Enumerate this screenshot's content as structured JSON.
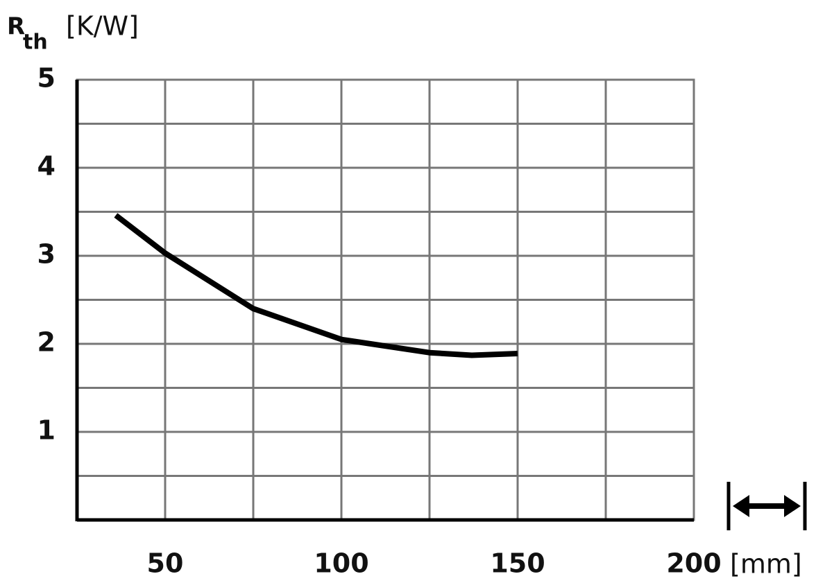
{
  "chart_data": {
    "type": "line",
    "y_label": {
      "symbol": "R",
      "subscript": "th",
      "unit": "[K/W]"
    },
    "x_unit": "[mm]",
    "x": [
      36,
      50,
      75,
      100,
      125,
      137,
      150
    ],
    "series": [
      {
        "color": "#000000",
        "values": [
          3.46,
          3.03,
          2.4,
          2.05,
          1.9,
          1.87,
          1.89
        ]
      }
    ],
    "xlim": [
      25,
      200
    ],
    "xticks": [
      50,
      100,
      150,
      200
    ],
    "xgrid": [
      50,
      75,
      100,
      125,
      150,
      175
    ],
    "ylim": [
      0,
      5
    ],
    "yticks": [
      1,
      2,
      3,
      4,
      5
    ],
    "ygrid": [
      0.5,
      1,
      1.5,
      2,
      2.5,
      3,
      3.5,
      4,
      4.5
    ],
    "grid": true
  }
}
